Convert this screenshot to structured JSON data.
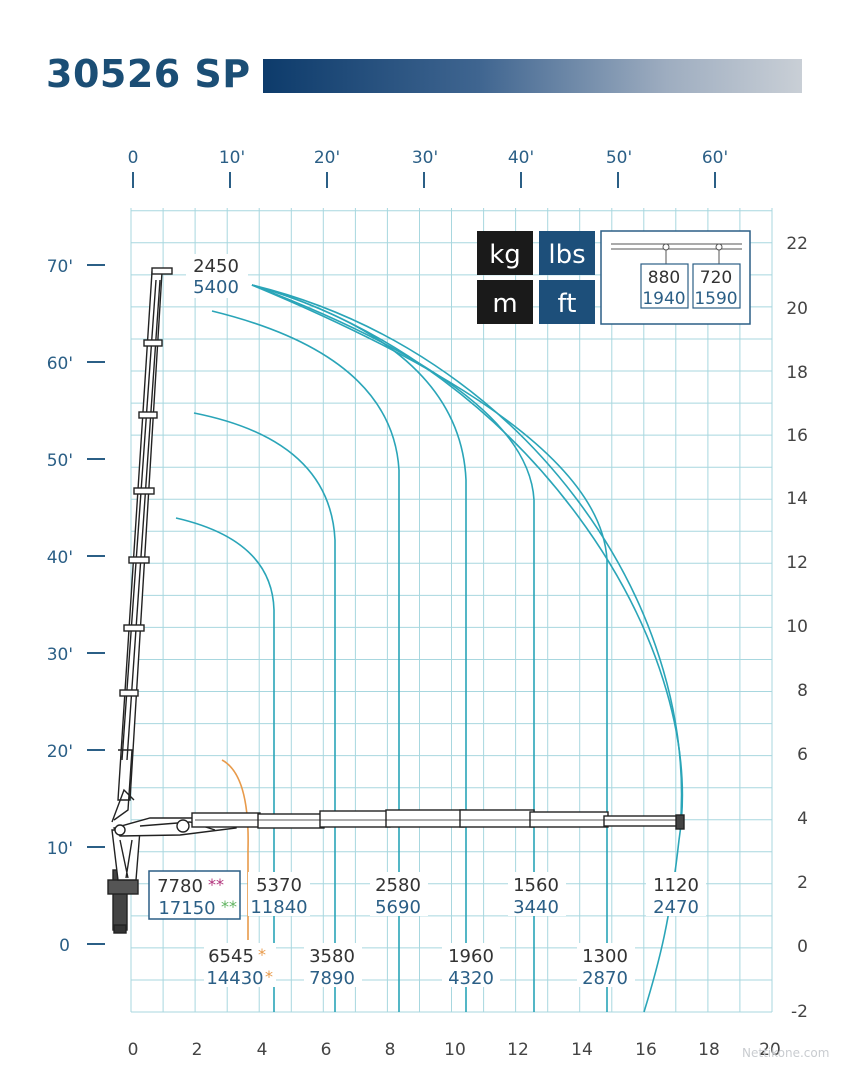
{
  "title": "30526 SP",
  "axes": {
    "top_feet_ticks": [
      "0",
      "10'",
      "20'",
      "30'",
      "40'",
      "50'",
      "60'"
    ],
    "left_feet_ticks": [
      "0",
      "10'",
      "20'",
      "30'",
      "40'",
      "50'",
      "60'",
      "70'"
    ],
    "right_meter_ticks": [
      "-2",
      "0",
      "2",
      "4",
      "6",
      "8",
      "10",
      "12",
      "14",
      "16",
      "18",
      "20",
      "22"
    ],
    "bottom_meter_ticks": [
      "0",
      "2",
      "4",
      "6",
      "8",
      "10",
      "12",
      "14",
      "16",
      "18",
      "20"
    ]
  },
  "units_legend": {
    "kg": "kg",
    "lbs": "lbs",
    "m": "m",
    "ft": "ft"
  },
  "jib_box": {
    "kg_1": "880",
    "lbs_1": "1940",
    "kg_2": "720",
    "lbs_2": "1590"
  },
  "capacities": {
    "max_kg": "7780",
    "max_lbs": "17150",
    "max_marks": "**",
    "orange_kg": "6545",
    "orange_lbs": "14430",
    "orange_mark": "*",
    "tip_kg": "2450",
    "tip_lbs": "5400",
    "r1_kg": "5370",
    "r1_lbs": "11840",
    "r2_kg": "3580",
    "r2_lbs": "7890",
    "r3_kg": "2580",
    "r3_lbs": "5690",
    "r4_kg": "1960",
    "r4_lbs": "4320",
    "r5_kg": "1560",
    "r5_lbs": "3440",
    "r6_kg": "1300",
    "r6_lbs": "2870",
    "r7_kg": "1120",
    "r7_lbs": "2470"
  },
  "colors": {
    "curve": "#2aa5b8",
    "grid": "#a8d7df",
    "blue_text": "#2b5f86",
    "dark_text": "#333333",
    "orange": "#e89a4a",
    "green": "#5fb35f",
    "magenta": "#b0307a",
    "crane": "#222222",
    "kg_box": "#1a1a1a",
    "lbs_box": "#1d4f7a"
  },
  "watermark": "Nettikone.com"
}
